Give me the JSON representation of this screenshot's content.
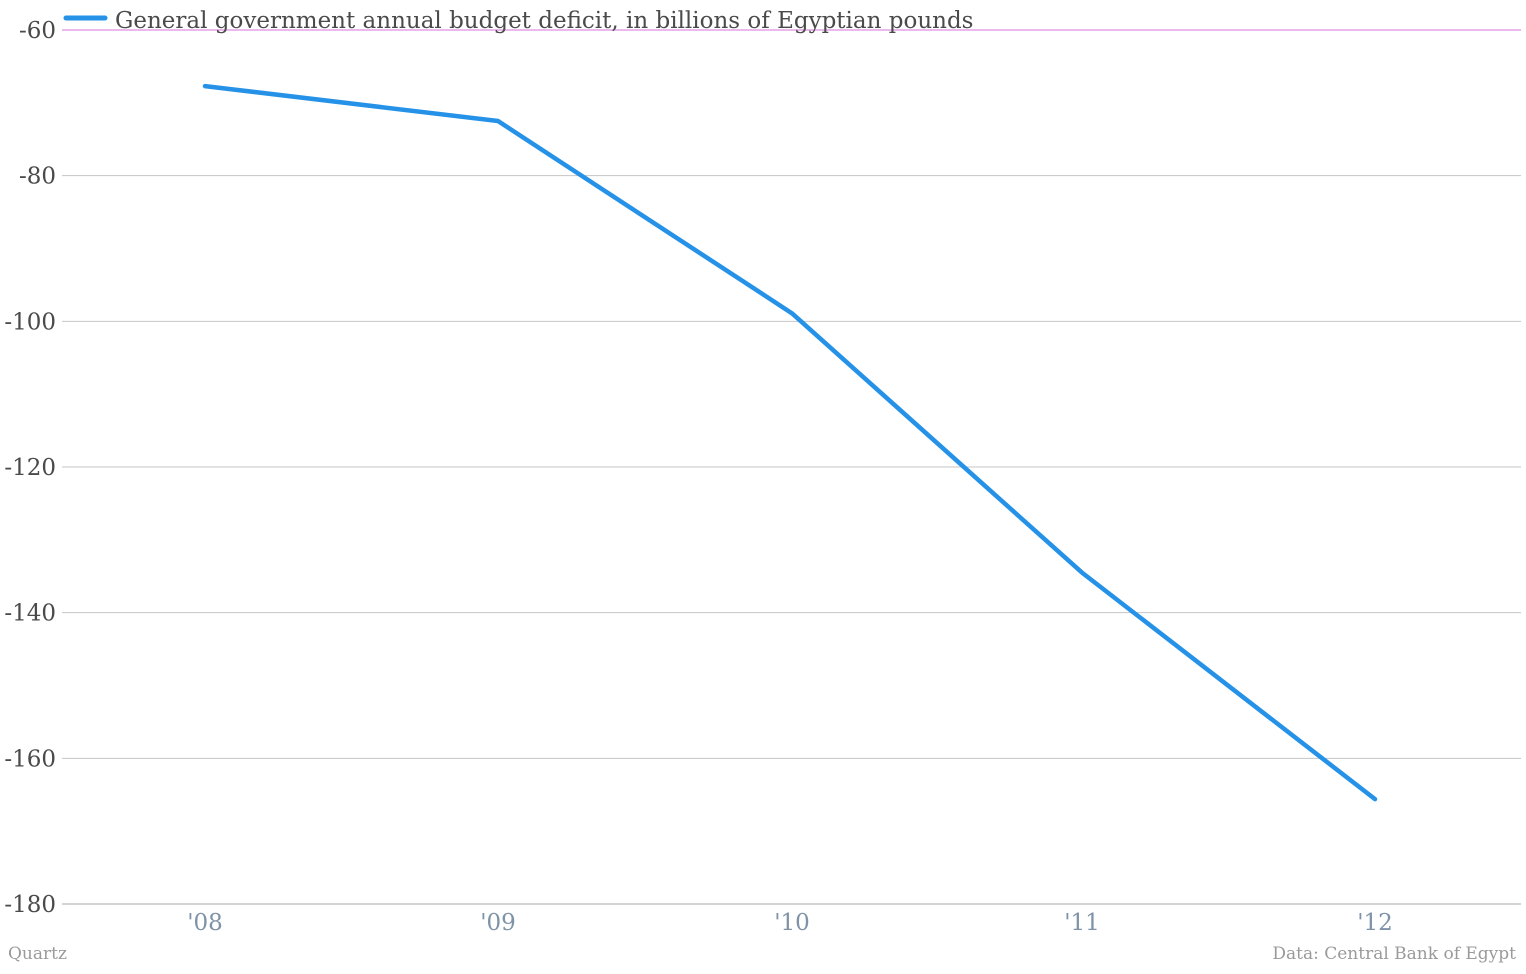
{
  "chart_data": {
    "type": "line",
    "categories": [
      "'08",
      "'09",
      "'10",
      "'11",
      "'12"
    ],
    "series": [
      {
        "name": "General government annual budget deficit, in billions of Egyptian pounds",
        "values": [
          -67.7,
          -72.5,
          -98.9,
          -134.5,
          -165.6
        ]
      }
    ],
    "ylim": [
      -180,
      -60
    ],
    "yticks": [
      -60,
      -80,
      -100,
      -120,
      -140,
      -160,
      -180
    ],
    "grid": true,
    "legend_position": "top-left",
    "colors": {
      "series": "#2592e8",
      "grid": "#c4c4c4",
      "top_rule": "#d873d8",
      "axis": "#aaaaaa"
    }
  },
  "footer": {
    "source_left": "Quartz",
    "source_right": "Data: Central Bank of Egypt"
  }
}
